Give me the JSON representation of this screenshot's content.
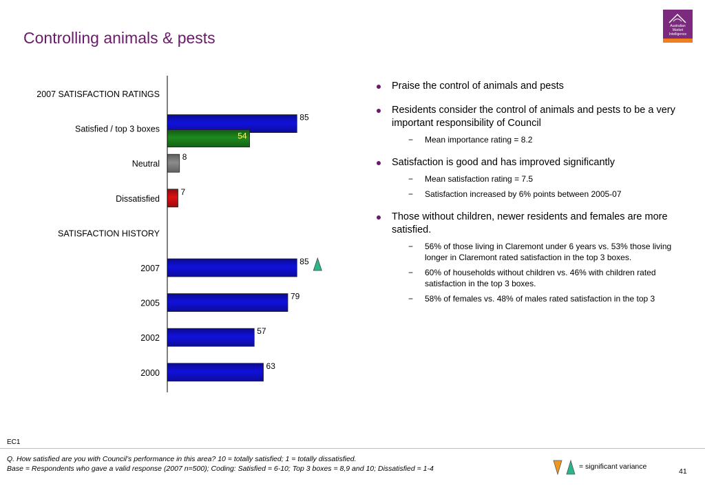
{
  "title": "Controlling animals & pests",
  "logo": {
    "lines": [
      "Australian",
      "Market",
      "Intelligence"
    ]
  },
  "chart_data": {
    "type": "bar",
    "orientation": "horizontal",
    "sections": [
      {
        "heading": "2007 SATISFACTION RATINGS",
        "rows": [
          {
            "label": "Satisfied / top 3 boxes",
            "value": 85,
            "color": "#1111dd",
            "inner_value": 54,
            "inner_color": "#1e8a1e"
          },
          {
            "label": "Neutral",
            "value": 8,
            "color": "#8c8c8c"
          },
          {
            "label": "Dissatisfied",
            "value": 7,
            "color": "#dd1111"
          }
        ]
      },
      {
        "heading": "SATISFACTION HISTORY",
        "rows": [
          {
            "label": "2007",
            "value": 85,
            "color": "#1111dd",
            "marker": "up"
          },
          {
            "label": "2005",
            "value": 79,
            "color": "#1111dd"
          },
          {
            "label": "2002",
            "value": 57,
            "color": "#1111dd"
          },
          {
            "label": "2000",
            "value": 63,
            "color": "#1111dd"
          }
        ]
      }
    ],
    "xlim": [
      0,
      100
    ]
  },
  "bullets": [
    {
      "text": "Praise the control of animals and pests",
      "subs": []
    },
    {
      "text": "Residents consider the control of animals and pests to be a very important responsibility of Council",
      "subs": [
        "Mean importance rating = 8.2"
      ]
    },
    {
      "text": "Satisfaction is good and has improved significantly",
      "subs": [
        "Mean satisfaction rating = 7.5",
        "Satisfaction increased by 6% points between 2005-07"
      ]
    },
    {
      "text": "Those without children, newer residents and females are more satisfied.",
      "subs": [
        "56% of those living in Claremont under 6 years vs. 53% those living longer in Claremont rated satisfaction in the top 3 boxes.",
        "60% of households without children vs. 46% with children rated satisfaction in the top 3 boxes.",
        "58% of females vs. 48% of males rated satisfaction in the top 3"
      ]
    }
  ],
  "footer": {
    "code": "EC1",
    "question": "Q. How satisfied are you with Council’s performance in this area? 10 = totally satisfied; 1 = totally dissatisfied.",
    "base": "Base = Respondents who gave a valid response (2007 n=500); Coding: Satisfied = 6-10; Top 3 boxes = 8,9 and 10; Dissatisfied = 1-4",
    "legend_text": "= significant variance",
    "page_number": "41"
  },
  "colors": {
    "title": "#6a1a6a",
    "bullet": "#6a1a6a",
    "up_marker": "#2bb58a",
    "down_marker": "#f0961e"
  }
}
